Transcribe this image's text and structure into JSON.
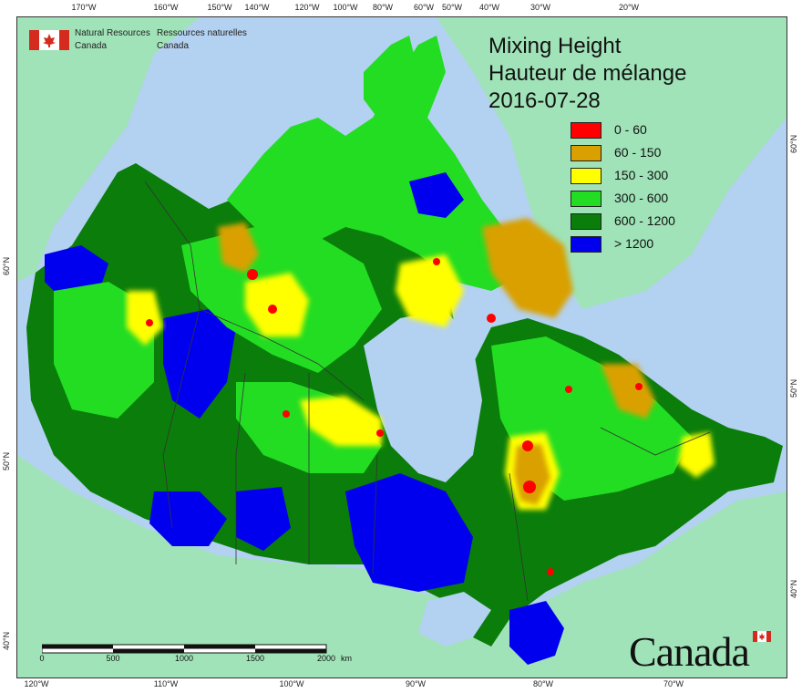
{
  "map": {
    "title_en": "Mixing Height",
    "title_fr": "Hauteur de mélange",
    "date": "2016-07-28",
    "agency_en": [
      "Natural Resources",
      "Canada"
    ],
    "agency_fr": [
      "Ressources naturelles",
      "Canada"
    ],
    "wordmark": "Canada",
    "colors": {
      "ocean": "#b3d1f0",
      "foreign_land": "#a0e3b8",
      "boundary": "#333333"
    }
  },
  "legend": [
    {
      "label": "0 - 60",
      "color": "#ff0000"
    },
    {
      "label": "60 - 150",
      "color": "#d9a000"
    },
    {
      "label": "150 - 300",
      "color": "#ffff00"
    },
    {
      "label": "300 - 600",
      "color": "#22dd22"
    },
    {
      "label": "600 - 1200",
      "color": "#0a7d0a"
    },
    {
      "label": "> 1200",
      "color": "#0000ee"
    }
  ],
  "graticule": {
    "top": [
      "170°W",
      "160°W",
      "150°W",
      "140°W",
      "120°W",
      "100°W",
      "80°W",
      "60°W",
      "50°W",
      "40°W",
      "30°W",
      "20°W"
    ],
    "bottom": [
      "120°W",
      "110°W",
      "100°W",
      "90°W",
      "80°W",
      "70°W"
    ],
    "left": [
      "60°N",
      "50°N",
      "40°N"
    ],
    "right": [
      "60°N",
      "50°N",
      "40°N"
    ]
  },
  "scale": {
    "labels": [
      "0",
      "500",
      "1000",
      "1500",
      "2000"
    ],
    "unit": "km"
  }
}
